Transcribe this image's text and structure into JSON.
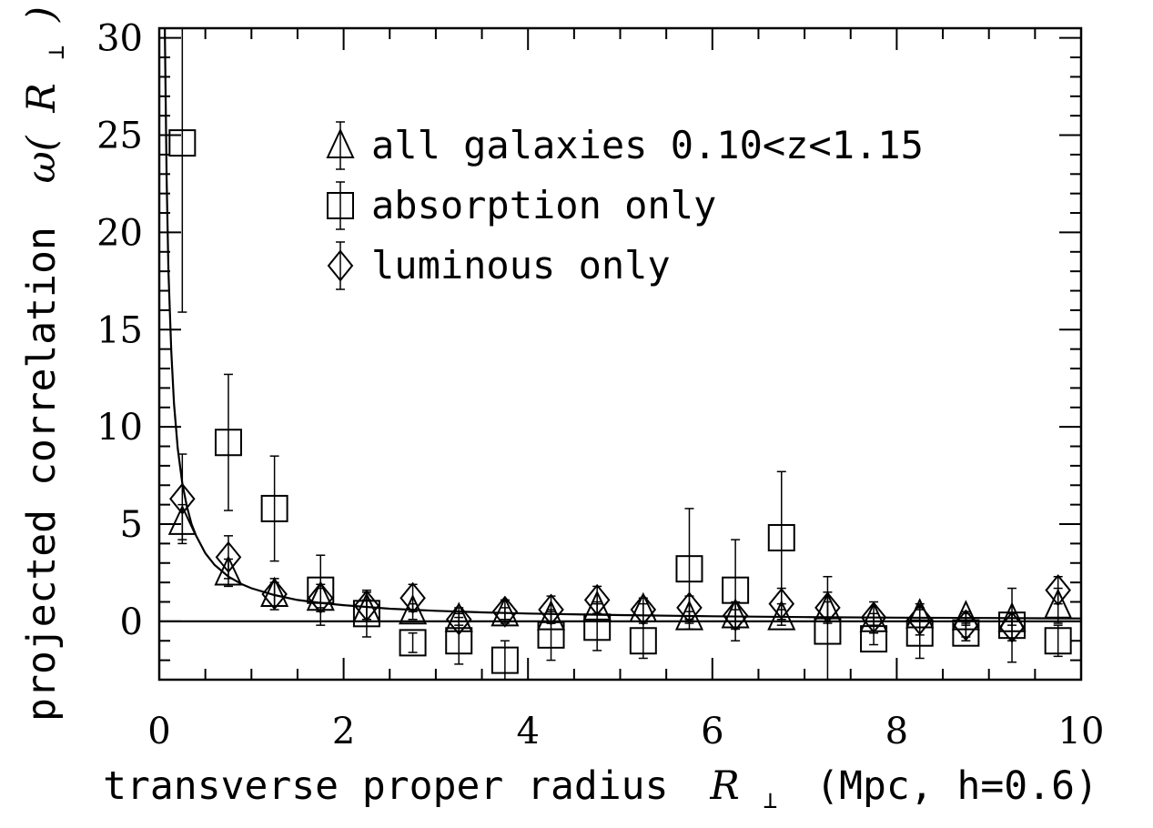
{
  "chart_data": {
    "type": "scatter",
    "xlabel": "transverse proper radius",
    "xlabel_symbol": "R",
    "xlabel_subscript": "⊥",
    "xlabel_units": "(Mpc, h=0.6)",
    "ylabel": "projected correlation",
    "ylabel_symbol_open": "ω(",
    "ylabel_symbol_R": "R",
    "ylabel_symbol_sub": "⊥",
    "ylabel_symbol_close": ")",
    "xlim": [
      0,
      10
    ],
    "ylim": [
      -3,
      30.5
    ],
    "xticks": [
      0,
      2,
      4,
      6,
      8,
      10
    ],
    "xtick_labels": [
      "0",
      "2",
      "4",
      "6",
      "8",
      "10"
    ],
    "yticks": [
      0,
      5,
      10,
      15,
      20,
      25,
      30
    ],
    "ytick_labels": [
      "0",
      "5",
      "10",
      "15",
      "20",
      "25",
      "30"
    ],
    "legend_position": "top-center",
    "zero_line": true,
    "series": [
      {
        "name": "all galaxies 0.10<z<1.15",
        "marker": "triangle",
        "points": [
          {
            "x": 0.25,
            "y": 5.1,
            "err": 0.9
          },
          {
            "x": 0.75,
            "y": 2.5,
            "err": 0.7
          },
          {
            "x": 1.25,
            "y": 1.4,
            "err": 0.6
          },
          {
            "x": 1.75,
            "y": 1.2,
            "err": 0.5
          },
          {
            "x": 2.25,
            "y": 0.6,
            "err": 0.5
          },
          {
            "x": 2.75,
            "y": 0.5,
            "err": 0.4
          },
          {
            "x": 3.25,
            "y": 0.1,
            "err": 0.3
          },
          {
            "x": 3.75,
            "y": 0.4,
            "err": 0.3
          },
          {
            "x": 4.25,
            "y": 0.2,
            "err": 0.3
          },
          {
            "x": 4.75,
            "y": 0.7,
            "err": 0.3
          },
          {
            "x": 5.25,
            "y": 0.6,
            "err": 0.3
          },
          {
            "x": 5.75,
            "y": 0.2,
            "err": 0.3
          },
          {
            "x": 6.25,
            "y": 0.3,
            "err": 0.3
          },
          {
            "x": 6.75,
            "y": 0.2,
            "err": 0.4
          },
          {
            "x": 7.25,
            "y": 0.6,
            "err": 0.4
          },
          {
            "x": 7.75,
            "y": 0.1,
            "err": 0.3
          },
          {
            "x": 8.25,
            "y": 0.3,
            "err": 0.3
          },
          {
            "x": 8.75,
            "y": 0.2,
            "err": 0.3
          },
          {
            "x": 9.25,
            "y": 0.1,
            "err": 0.3
          },
          {
            "x": 9.75,
            "y": 0.8,
            "err": 0.9
          }
        ]
      },
      {
        "name": "absorption only",
        "marker": "square",
        "points": [
          {
            "x": 0.25,
            "y": 24.6,
            "err": 8.7
          },
          {
            "x": 0.75,
            "y": 9.2,
            "err": 3.5
          },
          {
            "x": 1.25,
            "y": 5.8,
            "err": 2.7
          },
          {
            "x": 1.75,
            "y": 1.6,
            "err": 1.8
          },
          {
            "x": 2.25,
            "y": 0.4,
            "err": 1.2
          },
          {
            "x": 2.75,
            "y": -1.1,
            "err": 0.5
          },
          {
            "x": 3.25,
            "y": -1.0,
            "err": 1.2
          },
          {
            "x": 3.75,
            "y": -2.0,
            "err": 1.0
          },
          {
            "x": 4.25,
            "y": -0.7,
            "err": 1.3
          },
          {
            "x": 4.75,
            "y": -0.3,
            "err": 1.2
          },
          {
            "x": 5.25,
            "y": -1.0,
            "err": 0.9
          },
          {
            "x": 5.75,
            "y": 2.7,
            "err": 3.1
          },
          {
            "x": 6.25,
            "y": 1.6,
            "err": 2.6
          },
          {
            "x": 6.75,
            "y": 4.3,
            "err": 3.4
          },
          {
            "x": 7.25,
            "y": -0.5,
            "err": 2.8
          },
          {
            "x": 7.75,
            "y": -0.9,
            "err": 0.3
          },
          {
            "x": 8.25,
            "y": -0.6,
            "err": 1.3
          },
          {
            "x": 8.75,
            "y": -0.6,
            "err": 0.4
          },
          {
            "x": 9.25,
            "y": -0.2,
            "err": 1.9
          },
          {
            "x": 9.75,
            "y": -1.0,
            "err": 0.8
          }
        ]
      },
      {
        "name": "luminous only",
        "marker": "diamond",
        "points": [
          {
            "x": 0.25,
            "y": 6.3,
            "err": 2.3
          },
          {
            "x": 0.75,
            "y": 3.3,
            "err": 1.1
          },
          {
            "x": 1.25,
            "y": 1.4,
            "err": 0.8
          },
          {
            "x": 1.75,
            "y": 1.2,
            "err": 0.7
          },
          {
            "x": 2.25,
            "y": 0.8,
            "err": 0.7
          },
          {
            "x": 2.75,
            "y": 1.2,
            "err": 0.7
          },
          {
            "x": 3.25,
            "y": 0.1,
            "err": 0.6
          },
          {
            "x": 3.75,
            "y": 0.5,
            "err": 0.6
          },
          {
            "x": 4.25,
            "y": 0.6,
            "err": 0.7
          },
          {
            "x": 4.75,
            "y": 1.1,
            "err": 0.7
          },
          {
            "x": 5.25,
            "y": 0.6,
            "err": 0.6
          },
          {
            "x": 5.75,
            "y": 0.7,
            "err": 0.6
          },
          {
            "x": 6.25,
            "y": 0.3,
            "err": 0.7
          },
          {
            "x": 6.75,
            "y": 0.9,
            "err": 0.8
          },
          {
            "x": 7.25,
            "y": 0.7,
            "err": 0.8
          },
          {
            "x": 7.75,
            "y": 0.2,
            "err": 0.8
          },
          {
            "x": 8.25,
            "y": 0.1,
            "err": 0.8
          },
          {
            "x": 8.75,
            "y": -0.2,
            "err": 0.6
          },
          {
            "x": 9.25,
            "y": -0.3,
            "err": 0.7
          },
          {
            "x": 9.75,
            "y": 1.6,
            "err": 0.7
          }
        ]
      }
    ],
    "fit_curve": {
      "x": [
        0.06,
        0.08,
        0.1,
        0.13,
        0.16,
        0.2,
        0.25,
        0.3,
        0.35,
        0.4,
        0.5,
        0.6,
        0.75,
        0.9,
        1.0,
        1.25,
        1.5,
        1.75,
        2.0,
        2.5,
        3.0,
        3.5,
        4.0,
        5.0,
        6.0,
        7.0,
        8.0,
        9.0,
        10.0
      ],
      "y": [
        30.6,
        22.8,
        18.0,
        13.9,
        11.2,
        8.9,
        7.1,
        5.9,
        5.0,
        4.4,
        3.5,
        2.9,
        2.3,
        1.9,
        1.7,
        1.35,
        1.1,
        0.95,
        0.83,
        0.65,
        0.54,
        0.46,
        0.4,
        0.32,
        0.26,
        0.22,
        0.19,
        0.17,
        0.15
      ]
    }
  }
}
